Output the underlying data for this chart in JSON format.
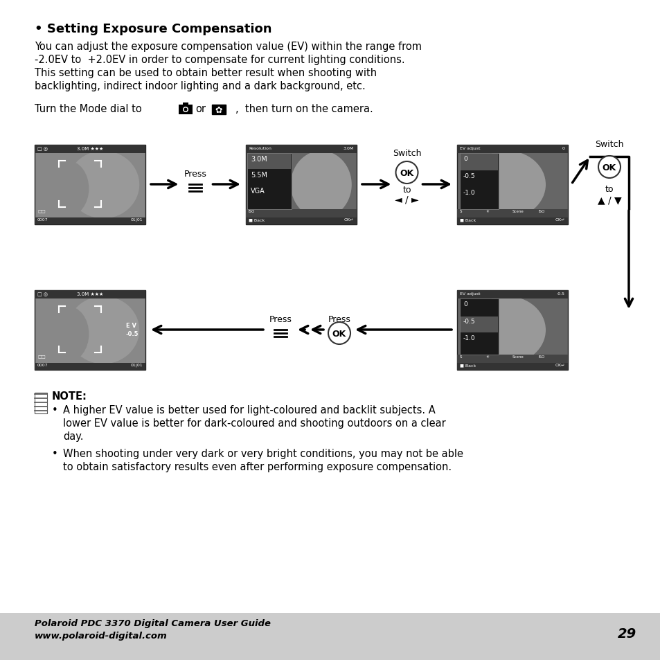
{
  "bg_color": "#ffffff",
  "footer_bg": "#cccccc",
  "footer_text1": "Polaroid PDC 3370 Digital Camera User Guide",
  "footer_text2": "www.polaroid-digital.com",
  "page_number": "29",
  "title": "• Setting Exposure Compensation",
  "para_lines": [
    "You can adjust the exposure compensation value (EV) within the range from",
    "-2.0EV to  +2.0EV in order to compensate for current lighting conditions.",
    "This setting can be used to obtain better result when shooting with",
    "backlighting, indirect indoor lighting and a dark background, etc."
  ],
  "note_title": "NOTE:",
  "note1_lines": [
    "A higher EV value is better used for light-coloured and backlit subjects. A",
    "lower EV value is better for dark-coloured and shooting outdoors on a clear",
    "day."
  ],
  "note2_lines": [
    "When shooting under very dark or very bright conditions, you may not be able",
    "to obtain satisfactory results even after performing exposure compensation."
  ],
  "screen_dark": "#555555",
  "screen_mid": "#888888",
  "screen_light": "#bbbbbb",
  "screen_face": "#aaaaaa",
  "menu_bg": "#1a1a1a",
  "menu_sel": "#555555",
  "bar_dark": "#333333"
}
